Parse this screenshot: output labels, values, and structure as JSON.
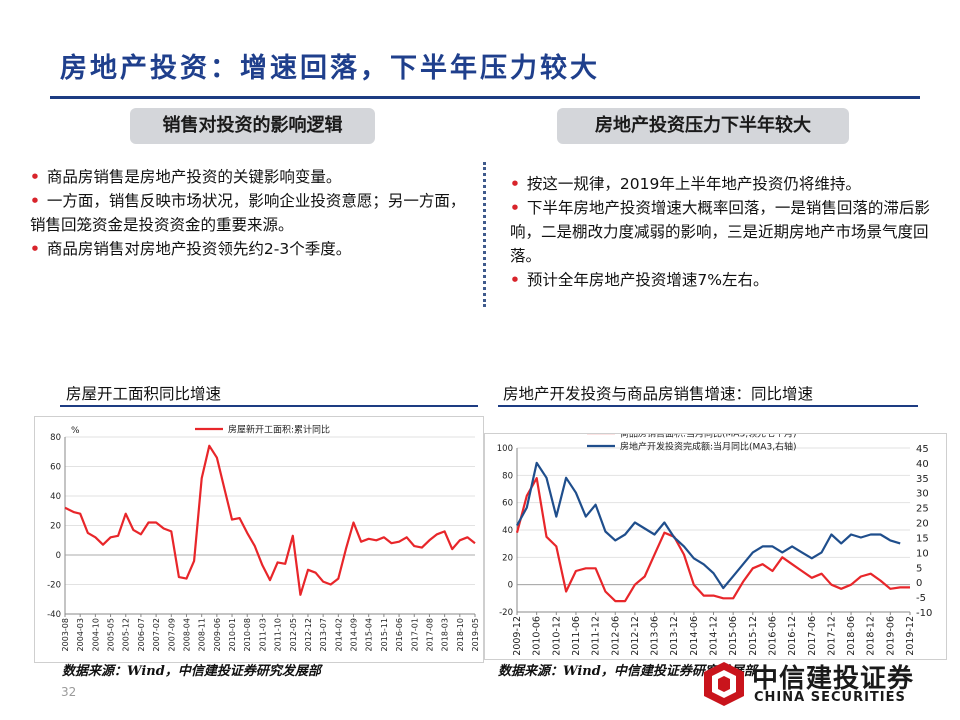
{
  "header": {
    "title": "房地产投资：增速回落，下半年压力较大"
  },
  "left_section": {
    "heading": "销售对投资的影响逻辑",
    "bullets": [
      "商品房销售是房地产投资的关键影响变量。",
      "一方面，销售反映市场状况，影响企业投资意愿；另一方面，销售回笼资金是投资资金的重要来源。",
      "商品房销售对房地产投资领先约2-3个季度。"
    ]
  },
  "right_section": {
    "heading": "房地产投资压力下半年较大",
    "bullets": [
      "按这一规律，2019年上半年地产投资仍将维持。",
      "下半年房地产投资增速大概率回落，一是销售回落的滞后影响，二是棚改力度减弱的影响，三是近期房地产市场景气度回落。",
      "预计全年房地产投资增速7%左右。"
    ]
  },
  "chart_data": [
    {
      "type": "line",
      "title": "房屋开工面积同比增速",
      "ylabel": "%",
      "ylim": [
        -40,
        80
      ],
      "yticks": [
        80,
        60,
        40,
        20,
        0,
        -20,
        -40
      ],
      "xticks": [
        "2003-08",
        "2004-03",
        "2004-10",
        "2005-05",
        "2005-12",
        "2006-07",
        "2007-02",
        "2007-09",
        "2008-04",
        "2008-11",
        "2009-06",
        "2010-01",
        "2010-08",
        "2011-03",
        "2011-10",
        "2012-05",
        "2012-12",
        "2013-07",
        "2014-02",
        "2014-09",
        "2015-04",
        "2015-11",
        "2016-06",
        "2017-01",
        "2017-08",
        "2018-03",
        "2018-10",
        "2019-05"
      ],
      "series": [
        {
          "name": "房屋新开工面积:累计同比",
          "color": "#e8262a",
          "x_index": [
            0,
            0.6,
            1,
            1.5,
            2,
            2.5,
            3,
            3.5,
            4,
            4.5,
            5,
            5.5,
            6,
            6.5,
            7,
            7.5,
            8,
            8.5,
            9,
            9.5,
            10,
            10.5,
            11,
            11.5,
            12,
            12.5,
            13,
            13.5,
            14,
            14.5,
            15,
            15.5,
            16,
            16.5,
            17,
            17.5,
            18,
            18.5,
            19,
            19.5,
            20,
            20.5,
            21,
            21.5,
            22,
            22.5,
            23,
            23.5,
            24,
            24.5,
            25,
            25.5,
            26,
            26.5,
            27
          ],
          "values": [
            32,
            29,
            28,
            15,
            12,
            7,
            12,
            13,
            28,
            17,
            14,
            22,
            22,
            18,
            16,
            -15,
            -16,
            -4,
            52,
            74,
            66,
            45,
            24,
            25,
            15,
            6,
            -7,
            -17,
            -5,
            -6,
            13,
            -27,
            -10,
            -12,
            -18,
            -20,
            -16,
            4,
            22,
            9,
            11,
            10,
            12,
            8,
            9,
            12,
            6,
            5,
            10,
            14,
            16,
            4,
            10,
            12,
            8
          ],
          "note": "values approximate, read from plot"
        }
      ]
    },
    {
      "type": "line",
      "title": "房地产开发投资与商品房销售增速：同比增速",
      "ylim": [
        -20,
        100
      ],
      "yticks": [
        100,
        80,
        60,
        40,
        20,
        0,
        -20
      ],
      "y2lim": [
        -10,
        45
      ],
      "y2ticks": [
        45,
        40,
        35,
        30,
        25,
        20,
        15,
        10,
        5,
        0,
        -5,
        -10
      ],
      "xticks": [
        "2009-12",
        "2010-06",
        "2010-12",
        "2011-06",
        "2011-12",
        "2012-06",
        "2012-12",
        "2013-06",
        "2013-12",
        "2014-06",
        "2014-12",
        "2015-06",
        "2015-12",
        "2016-06",
        "2016-12",
        "2017-06",
        "2017-12",
        "2018-06",
        "2018-12",
        "2019-06",
        "2019-12"
      ],
      "series": [
        {
          "name": "商品房销售面积:当月同比(MA3,领先七个月)",
          "axis": "left",
          "color": "#e8262a",
          "x_index": [
            0,
            0.5,
            1,
            1.5,
            2,
            2.5,
            3,
            3.5,
            4,
            4.5,
            5,
            5.5,
            6,
            6.5,
            7,
            7.5,
            8,
            8.5,
            9,
            9.5,
            10,
            10.5,
            11,
            11.5,
            12,
            12.5,
            13,
            13.5,
            14,
            14.5,
            15,
            15.5,
            16,
            16.5,
            17,
            17.5,
            18,
            18.5,
            19,
            19.5,
            20
          ],
          "values": [
            38,
            65,
            78,
            35,
            28,
            -5,
            10,
            12,
            12,
            -5,
            -12,
            -12,
            0,
            6,
            22,
            38,
            35,
            22,
            0,
            -8,
            -8,
            -10,
            -10,
            2,
            12,
            15,
            10,
            20,
            15,
            10,
            5,
            8,
            0,
            -3,
            0,
            6,
            8,
            3,
            -3,
            -2,
            -2
          ]
        },
        {
          "name": "房地产开发投资完成额:当月同比(MA3,右轴)",
          "axis": "right",
          "color": "#1f4e8c",
          "x_index": [
            0,
            0.5,
            1,
            1.5,
            2,
            2.5,
            3,
            3.5,
            4,
            4.5,
            5,
            5.5,
            6,
            6.5,
            7,
            7.5,
            8,
            8.5,
            9,
            9.5,
            10,
            10.5,
            11,
            11.5,
            12,
            12.5,
            13,
            13.5,
            14,
            14.5,
            15,
            15.5,
            16,
            16.5,
            17,
            17.5,
            18,
            18.5,
            19,
            19.5
          ],
          "values": [
            19,
            25,
            40,
            35,
            22,
            35,
            30,
            22,
            26,
            17,
            14,
            16,
            20,
            18,
            16,
            20,
            15,
            12,
            8,
            6,
            3,
            -2,
            2,
            6,
            10,
            12,
            12,
            10,
            12,
            10,
            8,
            10,
            16,
            13,
            16,
            15,
            16,
            16,
            14,
            13
          ]
        }
      ]
    }
  ],
  "footer": {
    "source_left": "数据来源：Wind，中信建投证券研究发展部",
    "source_right": "数据来源：Wind，中信建投证券研究发展部",
    "page_number": "32",
    "logo_cn": "中信建投证券",
    "logo_en": "CHINA SECURITIES"
  }
}
